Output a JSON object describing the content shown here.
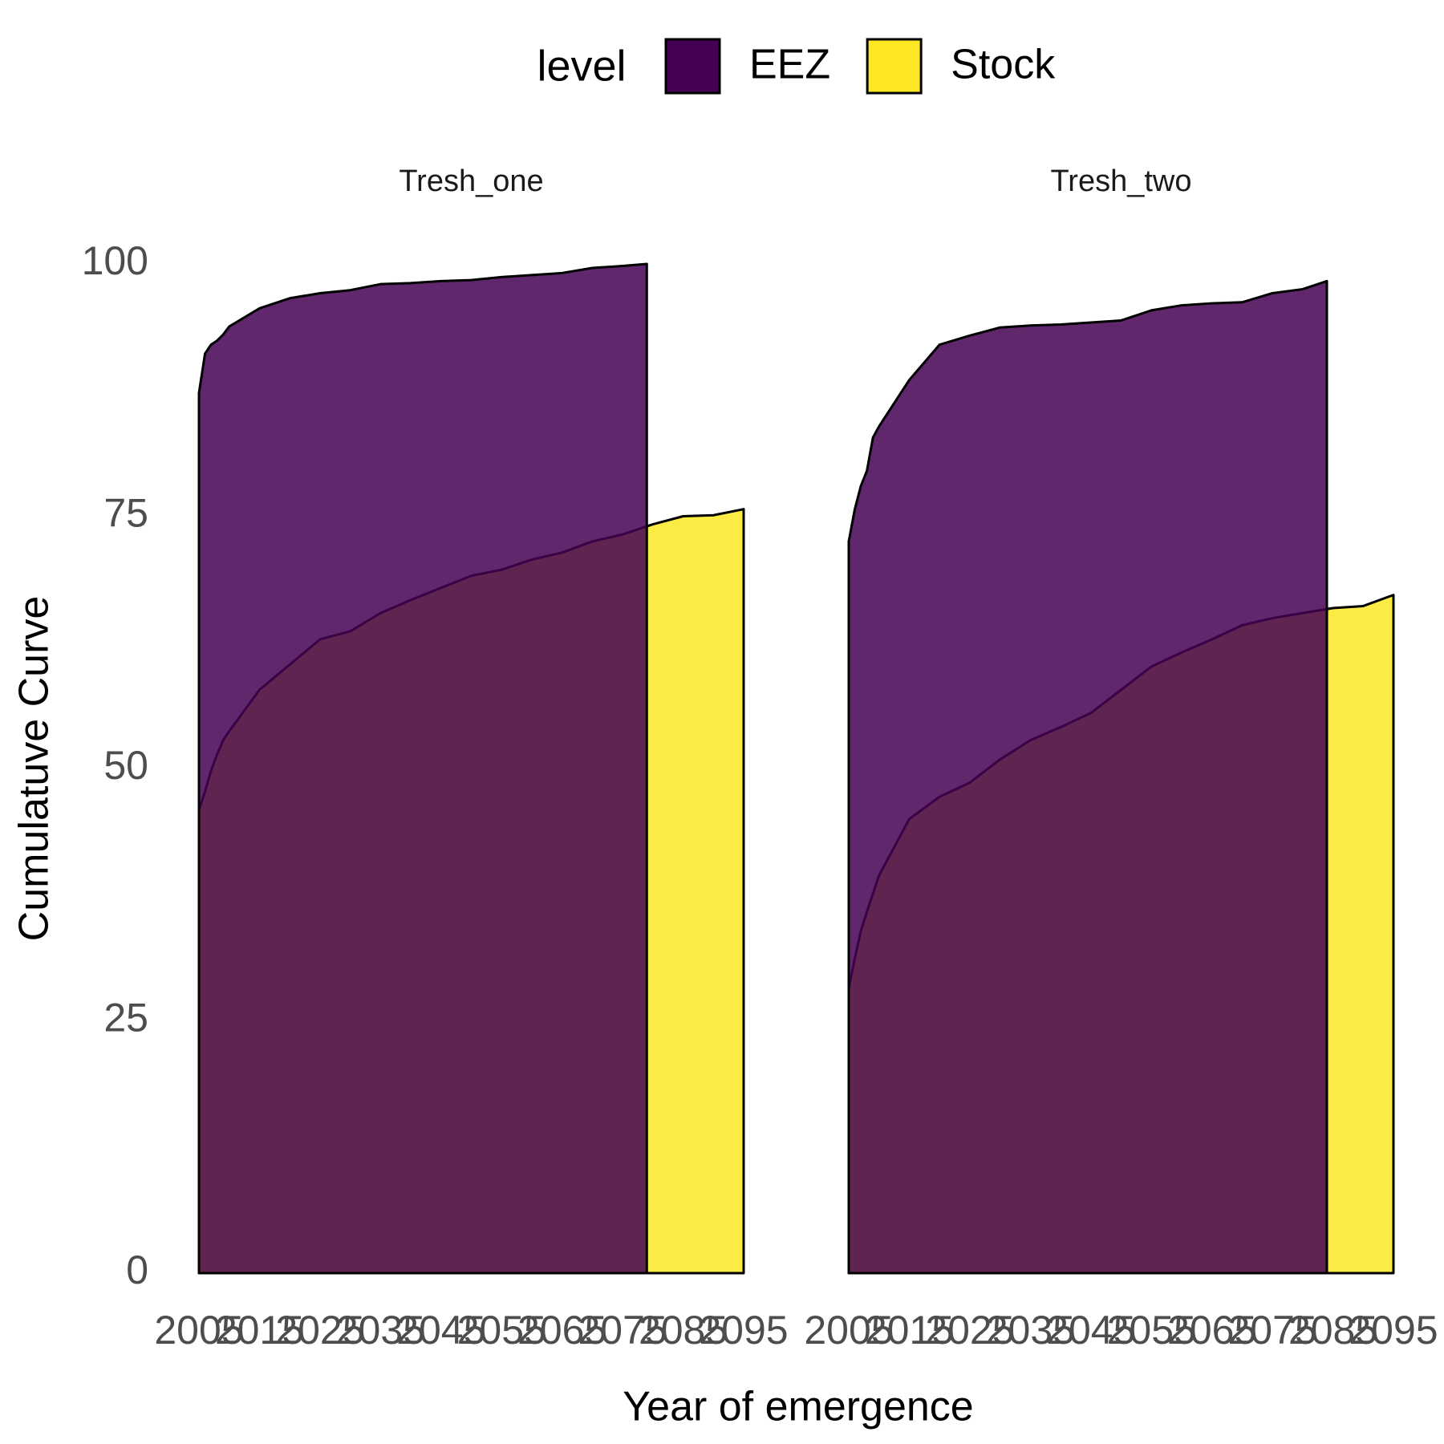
{
  "legend_title": "level",
  "x_label": "Year of emergence",
  "y_label": "Cumulatuve Curve",
  "chart_data": [
    {
      "type": "area",
      "title": "Tresh_one",
      "x": [
        2005,
        2006,
        2007,
        2008,
        2009,
        2010,
        2015,
        2020,
        2025,
        2030,
        2035,
        2040,
        2045,
        2050,
        2055,
        2060,
        2065,
        2070,
        2075,
        2079,
        2080,
        2085,
        2090,
        2095
      ],
      "series": [
        {
          "name": "Stock",
          "color": "#fde725",
          "values": [
            45.9,
            47.7,
            49.8,
            51.4,
            52.8,
            53.7,
            57.8,
            60.3,
            62.8,
            63.6,
            65.4,
            66.7,
            67.9,
            69.1,
            69.7,
            70.7,
            71.4,
            72.5,
            73.2,
            74.0,
            74.2,
            75.0,
            75.1,
            75.7
          ]
        },
        {
          "name": "EEZ",
          "color": "#440154",
          "values": [
            87.2,
            91.1,
            92.0,
            92.4,
            93.0,
            93.8,
            95.6,
            96.6,
            97.1,
            97.4,
            98.0,
            98.1,
            98.3,
            98.4,
            98.7,
            98.9,
            99.1,
            99.6,
            99.8,
            100.0,
            null,
            null,
            null,
            null
          ]
        }
      ],
      "alpha": 0.85,
      "xlim": [
        2005,
        2095
      ],
      "xticks": [
        2005,
        2015,
        2025,
        2035,
        2045,
        2055,
        2065,
        2075,
        2085,
        2095
      ],
      "ylim": [
        0,
        100
      ],
      "yticks": [
        0,
        25,
        50,
        75,
        100
      ],
      "grid": false
    },
    {
      "type": "area",
      "title": "Tresh_two",
      "x": [
        2005,
        2006,
        2007,
        2008,
        2009,
        2010,
        2015,
        2020,
        2025,
        2030,
        2035,
        2040,
        2045,
        2050,
        2055,
        2060,
        2065,
        2070,
        2075,
        2080,
        2084,
        2085,
        2090,
        2095
      ],
      "series": [
        {
          "name": "Stock",
          "color": "#fde725",
          "values": [
            28.2,
            31.2,
            33.9,
            35.8,
            37.6,
            39.4,
            45.0,
            47.2,
            48.6,
            50.9,
            52.8,
            54.1,
            55.5,
            57.8,
            60.1,
            61.5,
            62.8,
            64.2,
            64.9,
            65.4,
            65.8,
            65.9,
            66.1,
            67.2
          ]
        },
        {
          "name": "EEZ",
          "color": "#440154",
          "values": [
            72.5,
            75.7,
            78.0,
            79.5,
            82.8,
            83.9,
            88.5,
            92.0,
            92.9,
            93.7,
            93.9,
            94.0,
            94.2,
            94.4,
            95.4,
            95.9,
            96.1,
            96.2,
            97.1,
            97.5,
            98.3,
            null,
            null,
            null
          ]
        }
      ],
      "alpha": 0.85,
      "xlim": [
        2005,
        2095
      ],
      "xticks": [
        2005,
        2015,
        2025,
        2035,
        2045,
        2055,
        2065,
        2075,
        2085,
        2095
      ],
      "ylim": [
        0,
        100
      ],
      "yticks": [
        0,
        25,
        50,
        75,
        100
      ],
      "grid": false
    }
  ]
}
